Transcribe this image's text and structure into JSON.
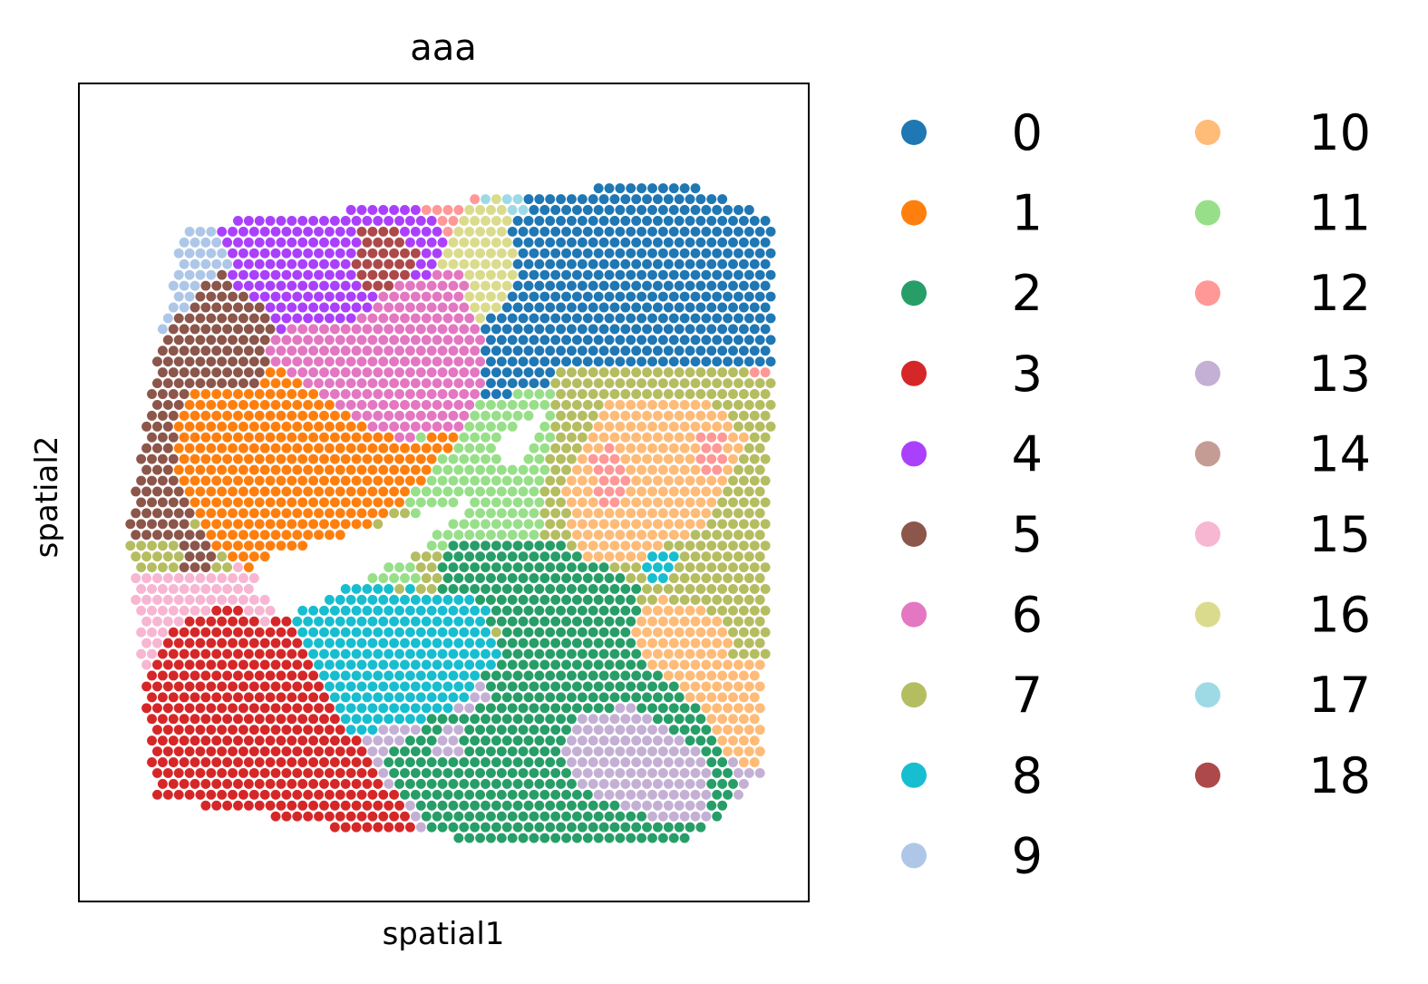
{
  "chart_data": {
    "type": "scatter",
    "title": "aaa",
    "xlabel": "spatial1",
    "ylabel": "spatial2",
    "xticks": [],
    "yticks": [],
    "grid": false,
    "legend": {
      "placement": "right-outside",
      "columns": 2,
      "entries": [
        {
          "label": "0",
          "color": "#1f77b4"
        },
        {
          "label": "1",
          "color": "#ff7f0e"
        },
        {
          "label": "2",
          "color": "#279e68"
        },
        {
          "label": "3",
          "color": "#d62728"
        },
        {
          "label": "4",
          "color": "#aa40fc"
        },
        {
          "label": "5",
          "color": "#8c564b"
        },
        {
          "label": "6",
          "color": "#e377c2"
        },
        {
          "label": "7",
          "color": "#b5bd61"
        },
        {
          "label": "8",
          "color": "#17becf"
        },
        {
          "label": "9",
          "color": "#aec7e8"
        },
        {
          "label": "10",
          "color": "#ffbb78"
        },
        {
          "label": "11",
          "color": "#98df8a"
        },
        {
          "label": "12",
          "color": "#ff9896"
        },
        {
          "label": "13",
          "color": "#c5b0d5"
        },
        {
          "label": "14",
          "color": "#c49c94"
        },
        {
          "label": "15",
          "color": "#f7b6d2"
        },
        {
          "label": "16",
          "color": "#dbdb8d"
        },
        {
          "label": "17",
          "color": "#9edae5"
        },
        {
          "label": "18",
          "color": "#ad494a"
        }
      ]
    },
    "tissue": {
      "grid_columns": 62,
      "grid_rows": 68,
      "outline": [
        [
          0.1,
          0.14
        ],
        [
          0.85,
          0.08
        ],
        [
          1.0,
          0.13
        ],
        [
          0.98,
          0.9
        ],
        [
          0.86,
          1.0
        ],
        [
          0.4,
          0.98
        ],
        [
          0.06,
          0.93
        ],
        [
          0.02,
          0.55
        ],
        [
          0.07,
          0.3
        ]
      ],
      "holes": [
        [
          [
            0.22,
            0.6
          ],
          [
            0.42,
            0.55
          ],
          [
            0.56,
            0.51
          ],
          [
            0.44,
            0.6
          ],
          [
            0.26,
            0.68
          ],
          [
            0.21,
            0.64
          ]
        ],
        [
          [
            0.57,
            0.44
          ],
          [
            0.66,
            0.39
          ],
          [
            0.6,
            0.48
          ]
        ]
      ],
      "regions": [
        {
          "cluster": 0,
          "polygon": [
            [
              0.62,
              0.06
            ],
            [
              0.86,
              0.04
            ],
            [
              1.0,
              0.07
            ],
            [
              1.0,
              0.33
            ],
            [
              0.86,
              0.34
            ],
            [
              0.7,
              0.36
            ],
            [
              0.64,
              0.4
            ],
            [
              0.55,
              0.38
            ],
            [
              0.52,
              0.29
            ],
            [
              0.6,
              0.25
            ],
            [
              0.6,
              0.11
            ]
          ]
        },
        {
          "cluster": 0,
          "polygon": [
            [
              0.0,
              0.49
            ],
            [
              0.04,
              0.49
            ],
            [
              0.04,
              0.56
            ],
            [
              0.0,
              0.56
            ]
          ]
        },
        {
          "cluster": 9,
          "polygon": [
            [
              0.1,
              0.04
            ],
            [
              0.3,
              0.04
            ],
            [
              0.32,
              0.1
            ],
            [
              0.24,
              0.15
            ],
            [
              0.17,
              0.28
            ],
            [
              0.05,
              0.3
            ],
            [
              0.01,
              0.24
            ],
            [
              0.01,
              0.06
            ]
          ]
        },
        {
          "cluster": 4,
          "polygon": [
            [
              0.3,
              0.04
            ],
            [
              0.42,
              0.04
            ],
            [
              0.48,
              0.11
            ],
            [
              0.56,
              0.19
            ],
            [
              0.5,
              0.23
            ],
            [
              0.4,
              0.28
            ],
            [
              0.26,
              0.28
            ],
            [
              0.18,
              0.22
            ],
            [
              0.16,
              0.14
            ],
            [
              0.22,
              0.08
            ]
          ]
        },
        {
          "cluster": 18,
          "polygon": [
            [
              0.37,
              0.15
            ],
            [
              0.42,
              0.14
            ],
            [
              0.46,
              0.18
            ],
            [
              0.42,
              0.24
            ],
            [
              0.36,
              0.22
            ]
          ]
        },
        {
          "cluster": 14,
          "polygon": [
            [
              0.34,
              0.0
            ],
            [
              0.52,
              0.0
            ],
            [
              0.5,
              0.04
            ],
            [
              0.44,
              0.09
            ],
            [
              0.38,
              0.06
            ]
          ]
        },
        {
          "cluster": 12,
          "polygon": [
            [
              0.44,
              0.07
            ],
            [
              0.52,
              0.05
            ],
            [
              0.58,
              0.06
            ],
            [
              0.56,
              0.14
            ],
            [
              0.52,
              0.18
            ],
            [
              0.46,
              0.11
            ]
          ]
        },
        {
          "cluster": 17,
          "polygon": [
            [
              0.54,
              0.02
            ],
            [
              0.6,
              0.02
            ],
            [
              0.62,
              0.12
            ],
            [
              0.56,
              0.12
            ]
          ]
        },
        {
          "cluster": 16,
          "polygon": [
            [
              0.53,
              0.12
            ],
            [
              0.58,
              0.1
            ],
            [
              0.61,
              0.2
            ],
            [
              0.58,
              0.26
            ],
            [
              0.47,
              0.24
            ]
          ]
        },
        {
          "cluster": 6,
          "polygon": [
            [
              0.43,
              0.22
            ],
            [
              0.52,
              0.2
            ],
            [
              0.56,
              0.3
            ],
            [
              0.56,
              0.38
            ],
            [
              0.5,
              0.44
            ],
            [
              0.4,
              0.42
            ],
            [
              0.28,
              0.36
            ],
            [
              0.2,
              0.31
            ],
            [
              0.26,
              0.28
            ],
            [
              0.36,
              0.27
            ]
          ]
        },
        {
          "cluster": 5,
          "polygon": [
            [
              0.16,
              0.2
            ],
            [
              0.25,
              0.28
            ],
            [
              0.2,
              0.34
            ],
            [
              0.1,
              0.36
            ],
            [
              0.08,
              0.46
            ],
            [
              0.12,
              0.55
            ],
            [
              0.16,
              0.6
            ],
            [
              0.12,
              0.63
            ],
            [
              0.02,
              0.57
            ],
            [
              0.04,
              0.45
            ],
            [
              0.02,
              0.36
            ],
            [
              0.06,
              0.3
            ]
          ]
        },
        {
          "cluster": 1,
          "polygon": [
            [
              0.12,
              0.36
            ],
            [
              0.24,
              0.37
            ],
            [
              0.34,
              0.4
            ],
            [
              0.44,
              0.44
            ],
            [
              0.52,
              0.42
            ],
            [
              0.48,
              0.49
            ],
            [
              0.38,
              0.56
            ],
            [
              0.24,
              0.63
            ],
            [
              0.15,
              0.59
            ],
            [
              0.1,
              0.5
            ],
            [
              0.09,
              0.42
            ]
          ]
        },
        {
          "cluster": 11,
          "polygon": [
            [
              0.56,
              0.38
            ],
            [
              0.66,
              0.36
            ],
            [
              0.68,
              0.44
            ],
            [
              0.64,
              0.54
            ],
            [
              0.57,
              0.58
            ],
            [
              0.46,
              0.63
            ],
            [
              0.36,
              0.63
            ],
            [
              0.44,
              0.55
            ],
            [
              0.56,
              0.47
            ]
          ]
        },
        {
          "cluster": 7,
          "polygon": [
            [
              0.66,
              0.34
            ],
            [
              0.86,
              0.33
            ],
            [
              1.0,
              0.35
            ],
            [
              1.0,
              0.74
            ],
            [
              0.88,
              0.74
            ],
            [
              0.82,
              0.68
            ],
            [
              0.72,
              0.62
            ],
            [
              0.64,
              0.58
            ],
            [
              0.66,
              0.44
            ]
          ]
        },
        {
          "cluster": 7,
          "polygon": [
            [
              0.44,
              0.59
            ],
            [
              0.56,
              0.58
            ],
            [
              0.58,
              0.64
            ],
            [
              0.48,
              0.66
            ]
          ]
        },
        {
          "cluster": 7,
          "polygon": [
            [
              0.0,
              0.58
            ],
            [
              0.1,
              0.58
            ],
            [
              0.1,
              0.62
            ],
            [
              0.0,
              0.62
            ]
          ]
        },
        {
          "cluster": 10,
          "polygon": [
            [
              0.74,
              0.38
            ],
            [
              0.9,
              0.38
            ],
            [
              0.96,
              0.44
            ],
            [
              0.9,
              0.55
            ],
            [
              0.8,
              0.6
            ],
            [
              0.7,
              0.6
            ],
            [
              0.68,
              0.5
            ]
          ]
        },
        {
          "cluster": 10,
          "polygon": [
            [
              0.82,
              0.65
            ],
            [
              0.92,
              0.68
            ],
            [
              0.94,
              0.78
            ],
            [
              0.88,
              0.86
            ],
            [
              0.8,
              0.78
            ],
            [
              0.78,
              0.7
            ]
          ]
        },
        {
          "cluster": 12,
          "polygon": [
            [
              0.72,
              0.46
            ],
            [
              0.76,
              0.44
            ],
            [
              0.78,
              0.52
            ],
            [
              0.73,
              0.53
            ]
          ]
        },
        {
          "cluster": 12,
          "polygon": [
            [
              0.88,
              0.42
            ],
            [
              0.92,
              0.42
            ],
            [
              0.92,
              0.48
            ],
            [
              0.88,
              0.48
            ]
          ]
        },
        {
          "cluster": 8,
          "polygon": [
            [
              0.8,
              0.6
            ],
            [
              0.85,
              0.58
            ],
            [
              0.84,
              0.64
            ],
            [
              0.8,
              0.64
            ]
          ]
        },
        {
          "cluster": 2,
          "polygon": [
            [
              0.5,
              0.58
            ],
            [
              0.66,
              0.57
            ],
            [
              0.8,
              0.64
            ],
            [
              0.78,
              0.72
            ],
            [
              0.9,
              0.82
            ],
            [
              0.94,
              0.9
            ],
            [
              0.92,
              0.98
            ],
            [
              0.82,
              1.0
            ],
            [
              0.6,
              1.0
            ],
            [
              0.48,
              0.98
            ],
            [
              0.4,
              0.88
            ],
            [
              0.48,
              0.82
            ],
            [
              0.58,
              0.8
            ],
            [
              0.58,
              0.7
            ],
            [
              0.48,
              0.66
            ]
          ]
        },
        {
          "cluster": 8,
          "polygon": [
            [
              0.36,
              0.66
            ],
            [
              0.44,
              0.64
            ],
            [
              0.56,
              0.66
            ],
            [
              0.58,
              0.74
            ],
            [
              0.52,
              0.8
            ],
            [
              0.44,
              0.83
            ],
            [
              0.38,
              0.83
            ],
            [
              0.33,
              0.78
            ],
            [
              0.33,
              0.7
            ]
          ]
        },
        {
          "cluster": 13,
          "polygon": [
            [
              0.7,
              0.82
            ],
            [
              0.78,
              0.8
            ],
            [
              0.9,
              0.88
            ],
            [
              0.9,
              0.96
            ],
            [
              0.82,
              0.96
            ],
            [
              0.7,
              0.92
            ],
            [
              0.68,
              0.86
            ]
          ]
        },
        {
          "cluster": 13,
          "polygon": [
            [
              0.48,
              0.84
            ],
            [
              0.52,
              0.83
            ],
            [
              0.53,
              0.88
            ],
            [
              0.48,
              0.88
            ]
          ]
        },
        {
          "cluster": 15,
          "polygon": [
            [
              0.0,
              0.62
            ],
            [
              0.12,
              0.62
            ],
            [
              0.14,
              0.68
            ],
            [
              0.08,
              0.74
            ],
            [
              0.0,
              0.74
            ]
          ]
        },
        {
          "cluster": 3,
          "polygon": [
            [
              0.08,
              0.7
            ],
            [
              0.18,
              0.66
            ],
            [
              0.26,
              0.72
            ],
            [
              0.32,
              0.78
            ],
            [
              0.36,
              0.84
            ],
            [
              0.42,
              0.92
            ],
            [
              0.46,
              0.98
            ],
            [
              0.38,
              1.0
            ],
            [
              0.24,
              0.98
            ],
            [
              0.14,
              0.96
            ],
            [
              0.06,
              0.94
            ],
            [
              0.0,
              0.9
            ],
            [
              0.02,
              0.8
            ]
          ]
        }
      ]
    }
  }
}
